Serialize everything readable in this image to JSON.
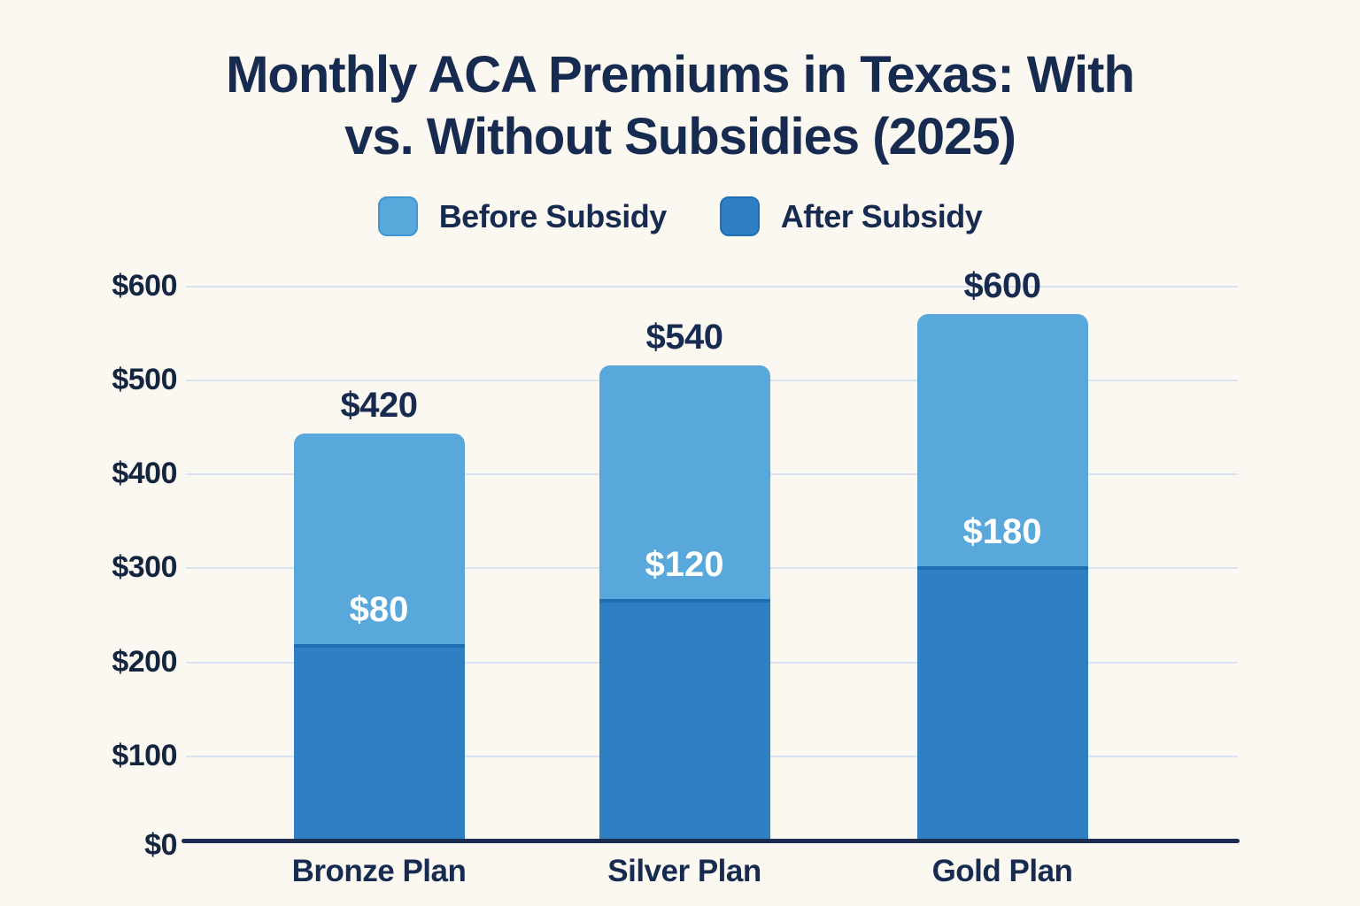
{
  "header": {
    "title_line1": "Monthly ACA Premiums in Texas: With",
    "title_line2": "vs. Without Subsidies (2025)"
  },
  "palette": {
    "background": "#FBF8F2",
    "title_text": "#172A4F",
    "gridline": "#D9E3EF",
    "axis_line": "#1B2C50",
    "inside_bar_label": "#FFFFFF"
  },
  "chart_data": {
    "type": "bar",
    "subtype": "stacked",
    "title": "Monthly ACA Premiums in Texas: With vs. Without Subsidies (2025)",
    "categories": [
      "Bronze Plan",
      "Silver Plan",
      "Gold Plan"
    ],
    "series": [
      {
        "name": "Before Subsidy",
        "values": [
          420,
          540,
          600
        ],
        "color": "#58A8DC"
      },
      {
        "name": "After Subsidy",
        "values": [
          80,
          120,
          180
        ],
        "color": "#2E80C3"
      }
    ],
    "value_labels_before": [
      "$420",
      "$540",
      "$600"
    ],
    "value_labels_after": [
      "$80",
      "$120",
      "$180"
    ],
    "xlabel": "",
    "ylabel": "",
    "ylim": [
      0,
      600
    ],
    "y_ticks": [
      600,
      500,
      400,
      300,
      200,
      100,
      0
    ],
    "y_tick_labels": [
      "$600",
      "$500",
      "$400",
      "$300",
      "$200",
      "$100",
      "$0"
    ],
    "grid": true,
    "legend_position": "top",
    "layout_hints": {
      "visual_bar_totals": [
        440,
        514,
        569
      ],
      "visual_after_segment_tops": [
        213,
        262,
        297
      ]
    }
  }
}
